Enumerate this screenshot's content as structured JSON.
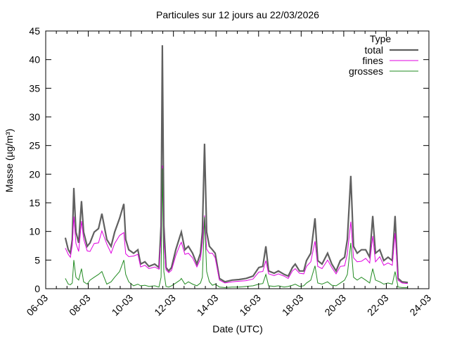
{
  "chart_data": {
    "type": "line",
    "title": "Particules sur 12 jours au 22/03/2026",
    "xlabel": "Date (UTC)",
    "ylabel": "Masse (µg/m³)",
    "x_unit": "days since 06-03 00:00",
    "xlim": [
      0,
      18
    ],
    "ylim": [
      0,
      45
    ],
    "yticks": [
      0,
      5,
      10,
      15,
      20,
      25,
      30,
      35,
      40,
      45
    ],
    "xticks": [
      {
        "value": 0,
        "label": "06-03"
      },
      {
        "value": 2,
        "label": "08-03"
      },
      {
        "value": 4,
        "label": "10-03"
      },
      {
        "value": 6,
        "label": "12-03"
      },
      {
        "value": 8,
        "label": "14-03"
      },
      {
        "value": 10,
        "label": "16-03"
      },
      {
        "value": 12,
        "label": "18-03"
      },
      {
        "value": 14,
        "label": "20-03"
      },
      {
        "value": 16,
        "label": "22-03"
      },
      {
        "value": 18,
        "label": "24-03"
      }
    ],
    "grid": false,
    "legend": {
      "title": "Type",
      "placement": "top-right"
    },
    "x": [
      0.92,
      1.06,
      1.16,
      1.25,
      1.32,
      1.42,
      1.55,
      1.68,
      1.78,
      1.95,
      2.08,
      2.28,
      2.48,
      2.64,
      2.74,
      2.87,
      3.07,
      3.24,
      3.47,
      3.67,
      3.76,
      3.9,
      4.13,
      4.33,
      4.46,
      4.66,
      4.85,
      5.12,
      5.32,
      5.42,
      5.48,
      5.55,
      5.65,
      5.78,
      5.91,
      6.11,
      6.31,
      6.37,
      6.54,
      6.7,
      6.9,
      7.1,
      7.27,
      7.36,
      7.46,
      7.56,
      7.69,
      7.83,
      7.96,
      8.16,
      8.42,
      8.75,
      9.08,
      9.41,
      9.74,
      10.01,
      10.2,
      10.34,
      10.47,
      10.73,
      10.93,
      11.2,
      11.39,
      11.59,
      11.72,
      11.92,
      12.12,
      12.25,
      12.45,
      12.65,
      12.78,
      12.98,
      13.24,
      13.44,
      13.64,
      13.84,
      14.04,
      14.17,
      14.33,
      14.46,
      14.63,
      14.83,
      15.03,
      15.22,
      15.36,
      15.49,
      15.69,
      15.88,
      16.08,
      16.28,
      16.41,
      16.55,
      16.74,
      17.01
    ],
    "series": [
      {
        "name": "total",
        "color": "#606060",
        "values": [
          8.9,
          6.8,
          6.2,
          8.6,
          17.6,
          9.9,
          8.0,
          15.3,
          9.9,
          7.4,
          8.0,
          9.9,
          10.5,
          13.1,
          11.1,
          8.6,
          7.4,
          9.9,
          12.3,
          14.8,
          8.6,
          6.8,
          6.2,
          6.8,
          4.3,
          4.7,
          3.9,
          4.3,
          3.7,
          11.1,
          42.5,
          11.1,
          3.7,
          3.1,
          3.7,
          6.8,
          9.2,
          9.9,
          6.8,
          7.4,
          6.2,
          4.3,
          6.2,
          9.9,
          25.3,
          9.9,
          7.4,
          6.8,
          6.2,
          1.8,
          1.2,
          1.5,
          1.6,
          1.8,
          2.2,
          3.7,
          3.9,
          7.4,
          3.1,
          2.7,
          3.1,
          2.5,
          2.2,
          3.7,
          4.3,
          3.1,
          3.1,
          4.9,
          6.2,
          12.3,
          4.9,
          4.3,
          6.2,
          4.3,
          3.1,
          4.9,
          5.5,
          8.6,
          19.7,
          7.4,
          6.2,
          6.8,
          6.8,
          5.5,
          12.7,
          6.2,
          6.8,
          4.9,
          5.5,
          4.9,
          12.7,
          1.8,
          1.2,
          1.1
        ]
      },
      {
        "name": "fines",
        "color": "#e000e0",
        "values": [
          7.1,
          6.0,
          5.5,
          7.6,
          12.6,
          7.9,
          6.5,
          11.8,
          8.7,
          6.6,
          6.5,
          7.9,
          8.0,
          10.1,
          9.1,
          7.8,
          6.2,
          7.9,
          9.3,
          9.8,
          6.1,
          5.6,
          5.7,
          6.0,
          3.8,
          4.1,
          3.5,
          3.8,
          3.4,
          9.1,
          21.5,
          8.1,
          3.3,
          2.8,
          3.2,
          5.8,
          7.7,
          8.1,
          6.0,
          6.2,
          5.4,
          3.8,
          5.2,
          7.9,
          12.8,
          6.9,
          6.2,
          6.2,
          5.4,
          1.5,
          1.0,
          1.2,
          1.3,
          1.4,
          1.7,
          2.9,
          3.0,
          4.9,
          2.6,
          2.3,
          2.6,
          2.2,
          1.8,
          3.1,
          3.5,
          2.7,
          2.6,
          3.9,
          4.7,
          8.3,
          3.9,
          3.5,
          5.0,
          3.7,
          2.6,
          3.9,
          4.0,
          6.1,
          11.7,
          5.4,
          4.7,
          4.8,
          5.3,
          4.5,
          9.2,
          4.7,
          5.6,
          4.1,
          4.5,
          4.1,
          9.7,
          1.5,
          1.0,
          0.9
        ]
      },
      {
        "name": "grosses",
        "color": "#228b22",
        "values": [
          1.8,
          0.8,
          0.7,
          1.0,
          5.0,
          2.0,
          1.5,
          3.5,
          1.2,
          0.8,
          1.5,
          2.0,
          2.5,
          3.0,
          2.0,
          0.8,
          1.2,
          2.0,
          3.0,
          5.0,
          2.5,
          1.2,
          0.5,
          0.8,
          0.5,
          0.6,
          0.4,
          0.5,
          0.3,
          2.0,
          21.0,
          3.0,
          0.4,
          0.3,
          0.5,
          1.0,
          1.5,
          1.8,
          0.8,
          1.2,
          0.8,
          0.5,
          1.0,
          2.0,
          12.5,
          3.0,
          1.2,
          0.6,
          0.8,
          0.3,
          0.2,
          0.3,
          0.3,
          0.4,
          0.5,
          0.8,
          0.9,
          2.5,
          0.5,
          0.4,
          0.5,
          0.3,
          0.4,
          0.6,
          0.8,
          0.4,
          0.5,
          1.0,
          1.5,
          4.0,
          1.0,
          0.8,
          1.2,
          0.6,
          0.5,
          1.0,
          1.5,
          2.5,
          8.0,
          2.0,
          1.5,
          2.0,
          1.5,
          1.0,
          3.5,
          1.5,
          1.2,
          0.8,
          1.0,
          0.8,
          3.0,
          0.3,
          0.2,
          0.2
        ]
      }
    ]
  }
}
